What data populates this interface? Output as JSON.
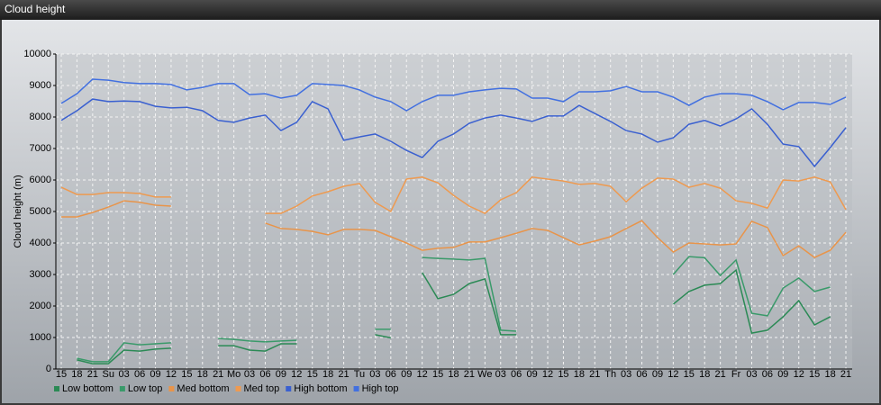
{
  "chart_data": {
    "type": "line",
    "title": "Cloud height",
    "ylabel": "Cloud height (m)",
    "categories": [
      "15",
      "18",
      "21",
      "Su",
      "03",
      "06",
      "09",
      "12",
      "15",
      "18",
      "21",
      "Mo",
      "03",
      "06",
      "09",
      "12",
      "15",
      "18",
      "21",
      "Tu",
      "03",
      "06",
      "09",
      "12",
      "15",
      "18",
      "21",
      "We",
      "03",
      "06",
      "09",
      "12",
      "15",
      "18",
      "21",
      "Th",
      "03",
      "06",
      "09",
      "12",
      "15",
      "18",
      "21",
      "Fr",
      "03",
      "06",
      "09",
      "12",
      "15",
      "18",
      "21"
    ],
    "ylim": [
      0,
      10000
    ],
    "yticks": [
      0,
      1000,
      2000,
      3000,
      4000,
      5000,
      6000,
      7000,
      8000,
      9000,
      10000
    ],
    "grid": true,
    "series": [
      {
        "name": "Low bottom",
        "color": "#2b8a55",
        "values": [
          null,
          290,
          170,
          170,
          600,
          570,
          630,
          660,
          null,
          null,
          740,
          740,
          600,
          570,
          800,
          800,
          null,
          null,
          null,
          null,
          1090,
          990,
          null,
          3060,
          2230,
          2370,
          2710,
          2860,
          1090,
          1090,
          null,
          null,
          null,
          null,
          null,
          null,
          null,
          null,
          null,
          2060,
          2460,
          2660,
          2710,
          3140,
          1140,
          1230,
          1660,
          2170,
          1400,
          1660,
          null
        ]
      },
      {
        "name": "Low top",
        "color": "#3a9a6a",
        "values": [
          null,
          340,
          230,
          230,
          830,
          770,
          800,
          830,
          null,
          null,
          970,
          940,
          890,
          860,
          890,
          910,
          null,
          null,
          null,
          null,
          1260,
          1260,
          null,
          3540,
          3510,
          3490,
          3460,
          3510,
          1230,
          1200,
          null,
          null,
          null,
          null,
          null,
          null,
          null,
          null,
          null,
          3000,
          3570,
          3530,
          2970,
          3460,
          1770,
          1690,
          2570,
          2890,
          2460,
          2600,
          null
        ]
      },
      {
        "name": "Med bottom",
        "color": "#e8944a",
        "values": [
          4830,
          4830,
          4970,
          5140,
          5340,
          5290,
          5200,
          5170,
          null,
          null,
          null,
          null,
          null,
          4630,
          4460,
          4430,
          4370,
          4260,
          4430,
          4430,
          4400,
          4200,
          4000,
          3770,
          3830,
          3860,
          4030,
          4030,
          4170,
          4310,
          4460,
          4400,
          4170,
          3940,
          4060,
          4200,
          4460,
          4710,
          4170,
          3710,
          4000,
          3970,
          3940,
          3970,
          4690,
          4490,
          3600,
          3910,
          3540,
          3770,
          4340
        ]
      },
      {
        "name": "Med top",
        "color": "#ee9a50",
        "values": [
          5770,
          5540,
          5540,
          5600,
          5600,
          5570,
          5460,
          5460,
          null,
          null,
          null,
          null,
          null,
          4940,
          4940,
          5170,
          5490,
          5630,
          5800,
          5890,
          5290,
          5000,
          6030,
          6090,
          5910,
          5510,
          5170,
          4940,
          5370,
          5600,
          6090,
          6030,
          5970,
          5860,
          5890,
          5800,
          5310,
          5740,
          6060,
          6030,
          5770,
          5890,
          5740,
          5340,
          5260,
          5110,
          6000,
          5970,
          6090,
          5940,
          5060
        ]
      },
      {
        "name": "High bottom",
        "color": "#3a60d0",
        "values": [
          7890,
          8200,
          8570,
          8490,
          8510,
          8490,
          8340,
          8290,
          8310,
          8200,
          7890,
          7830,
          7970,
          8060,
          7570,
          7830,
          8490,
          8260,
          7260,
          7370,
          7460,
          7230,
          6940,
          6710,
          7230,
          7460,
          7800,
          7970,
          8060,
          7970,
          7860,
          8030,
          8030,
          8370,
          8110,
          7860,
          7570,
          7460,
          7200,
          7340,
          7770,
          7890,
          7710,
          7940,
          8260,
          7770,
          7140,
          7060,
          6430,
          7030,
          7660
        ]
      },
      {
        "name": "High top",
        "color": "#4270e0",
        "values": [
          8430,
          8740,
          9200,
          9170,
          9090,
          9060,
          9060,
          9030,
          8860,
          8940,
          9060,
          9060,
          8710,
          8740,
          8600,
          8690,
          9060,
          9030,
          9000,
          8860,
          8630,
          8490,
          8200,
          8490,
          8690,
          8690,
          8800,
          8860,
          8910,
          8890,
          8600,
          8600,
          8490,
          8800,
          8800,
          8830,
          8970,
          8800,
          8800,
          8630,
          8370,
          8630,
          8740,
          8740,
          8690,
          8490,
          8230,
          8460,
          8460,
          8400,
          8630
        ]
      }
    ]
  }
}
